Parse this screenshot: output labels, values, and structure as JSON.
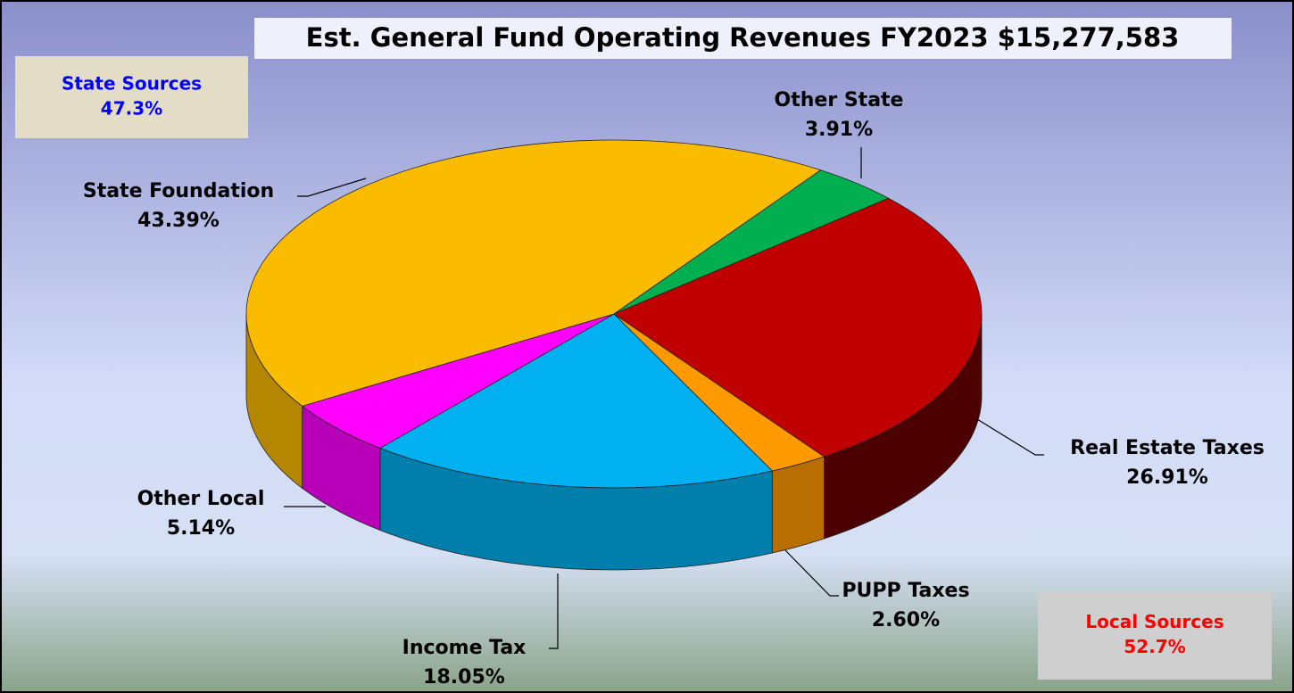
{
  "chart_data": {
    "type": "pie",
    "title": "Est. General Fund Operating Revenues FY2023 $15,277,583",
    "categories": [
      "Other State",
      "Real Estate Taxes",
      "PUPP Taxes",
      "Income Tax",
      "Other Local",
      "State Foundation"
    ],
    "values": [
      3.91,
      26.91,
      2.6,
      18.05,
      5.14,
      43.39
    ],
    "value_labels": [
      "3.91%",
      "26.91%",
      "2.60%",
      "18.05%",
      "5.14%",
      "43.39%"
    ],
    "colors": [
      "#00b050",
      "#c00000",
      "#ff9900",
      "#00b0f0",
      "#ff00ff",
      "#fbbc00"
    ],
    "annotations": [
      {
        "label": "State Sources",
        "value": 47.3,
        "value_label": "47.3%",
        "color": "#0000ff"
      },
      {
        "label": "Local Sources",
        "value": 52.7,
        "value_label": "52.7%",
        "color": "#ff0000"
      }
    ]
  }
}
